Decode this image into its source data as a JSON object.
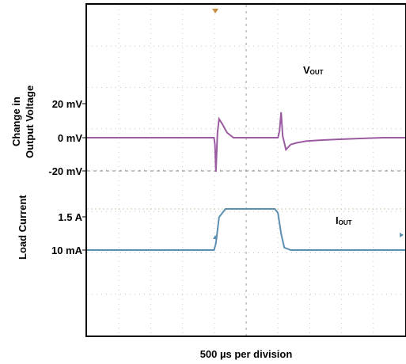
{
  "chart_data": {
    "type": "line",
    "xlabel": "500 µs per division",
    "x_divisions": 10,
    "grid": true,
    "panels": [
      {
        "ylabel_lines": [
          "Change in",
          "Output Voltage"
        ],
        "ticks": [
          {
            "value": 20,
            "label": "20 mV"
          },
          {
            "value": 0,
            "label": "0 mV"
          },
          {
            "value": -20,
            "label": "-20 mV"
          }
        ],
        "series": {
          "name": "V",
          "name_sub": "OUT",
          "color": "#9b5ba0",
          "x": [
            0,
            1.5,
            3.0,
            3.99,
            4.02,
            4.05,
            4.1,
            4.15,
            4.25,
            4.4,
            4.6,
            4.9,
            5.2,
            5.5,
            5.8,
            6.0,
            6.05,
            6.1,
            6.15,
            6.25,
            6.4,
            6.6,
            6.9,
            7.3,
            7.8,
            8.5,
            9.3,
            10
          ],
          "y": [
            0,
            0,
            0,
            0,
            -4,
            -20,
            3,
            11,
            8,
            3,
            0,
            0,
            0,
            0,
            0,
            0,
            4,
            15,
            1,
            -7,
            -4,
            -3,
            -2,
            -1.5,
            -1,
            -0.5,
            0,
            0
          ]
        }
      },
      {
        "ylabel_lines": [
          "Load Current"
        ],
        "ticks": [
          {
            "value": 1.5,
            "label": "1.5 A"
          },
          {
            "value": 0.01,
            "label": "10 mA"
          }
        ],
        "series": {
          "name": "I",
          "name_sub": "OUT",
          "color": "#5b8fb0",
          "x": [
            0,
            2,
            3.99,
            4.05,
            4.15,
            4.35,
            5,
            5.9,
            6.0,
            6.1,
            6.2,
            6.4,
            8,
            10
          ],
          "y": [
            0.01,
            0.01,
            0.01,
            0.25,
            1.2,
            1.5,
            1.5,
            1.5,
            1.35,
            0.6,
            0.1,
            0.01,
            0.01,
            0.01
          ]
        }
      }
    ]
  }
}
